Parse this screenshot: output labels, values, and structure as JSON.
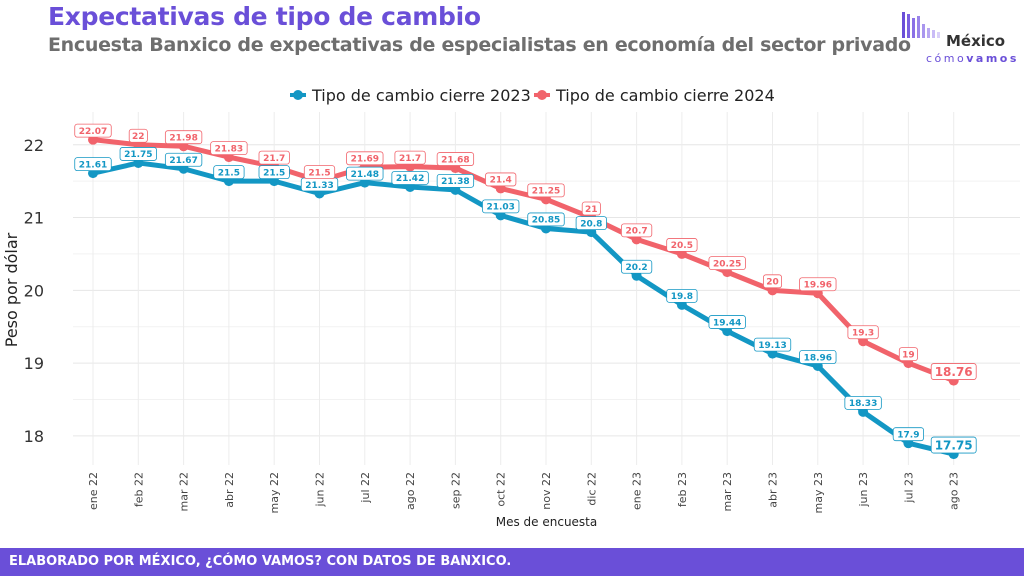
{
  "header": {
    "title": "Expectativas de tipo de cambio",
    "subtitle": "Encuesta Banxico de expectativas de especialistas en economía del sector privado"
  },
  "logo": {
    "word": "México",
    "sub_light": "cómo",
    "sub_bold": "vamos"
  },
  "footer": {
    "text": "ELABORADO POR MÉXICO, ¿CÓMO VAMOS? CON DATOS DE BANXICO."
  },
  "colors": {
    "series_2023": "#1397c4",
    "series_2024": "#f1636b",
    "accent": "#6a4fd8"
  },
  "chart_data": {
    "type": "line",
    "xlabel": "Mes de encuesta",
    "ylabel": "Peso por dólar",
    "ylim": [
      17.6,
      22.45
    ],
    "yticks": [
      18,
      19,
      20,
      21,
      22
    ],
    "grid": true,
    "legend_position": "top",
    "categories": [
      "ene 22",
      "feb 22",
      "mar 22",
      "abr 22",
      "may 22",
      "jun 22",
      "jul 22",
      "ago 22",
      "sep 22",
      "oct 22",
      "nov 22",
      "dic 22",
      "ene 23",
      "feb 23",
      "mar 23",
      "abr 23",
      "may 23",
      "jun 23",
      "jul 23",
      "ago 23"
    ],
    "series": [
      {
        "name": "Tipo de cambio cierre 2023",
        "values": [
          21.61,
          21.75,
          21.67,
          21.5,
          21.5,
          21.33,
          21.48,
          21.42,
          21.38,
          21.03,
          20.85,
          20.8,
          20.2,
          19.8,
          19.44,
          19.13,
          18.96,
          18.33,
          17.9,
          17.75
        ],
        "labels": [
          "21.61",
          "21.75",
          "21.67",
          "21.5",
          "21.5",
          "21.33",
          "21.48",
          "21.42",
          "21.38",
          "21.03",
          "20.85",
          "20.8",
          "20.2",
          "19.8",
          "19.44",
          "19.13",
          "18.96",
          "18.33",
          "17.9",
          "17.75"
        ]
      },
      {
        "name": "Tipo de cambio cierre 2024",
        "values": [
          22.07,
          22,
          21.98,
          21.83,
          21.7,
          21.5,
          21.69,
          21.7,
          21.68,
          21.4,
          21.25,
          21,
          20.7,
          20.5,
          20.25,
          20,
          19.96,
          19.3,
          19,
          18.76
        ],
        "labels": [
          "22.07",
          "22",
          "21.98",
          "21.83",
          "21.7",
          "21.5",
          "21.69",
          "21.7",
          "21.68",
          "21.4",
          "21.25",
          "21",
          "20.7",
          "20.5",
          "20.25",
          "20",
          "19.96",
          "19.3",
          "19",
          "18.76"
        ]
      }
    ]
  }
}
